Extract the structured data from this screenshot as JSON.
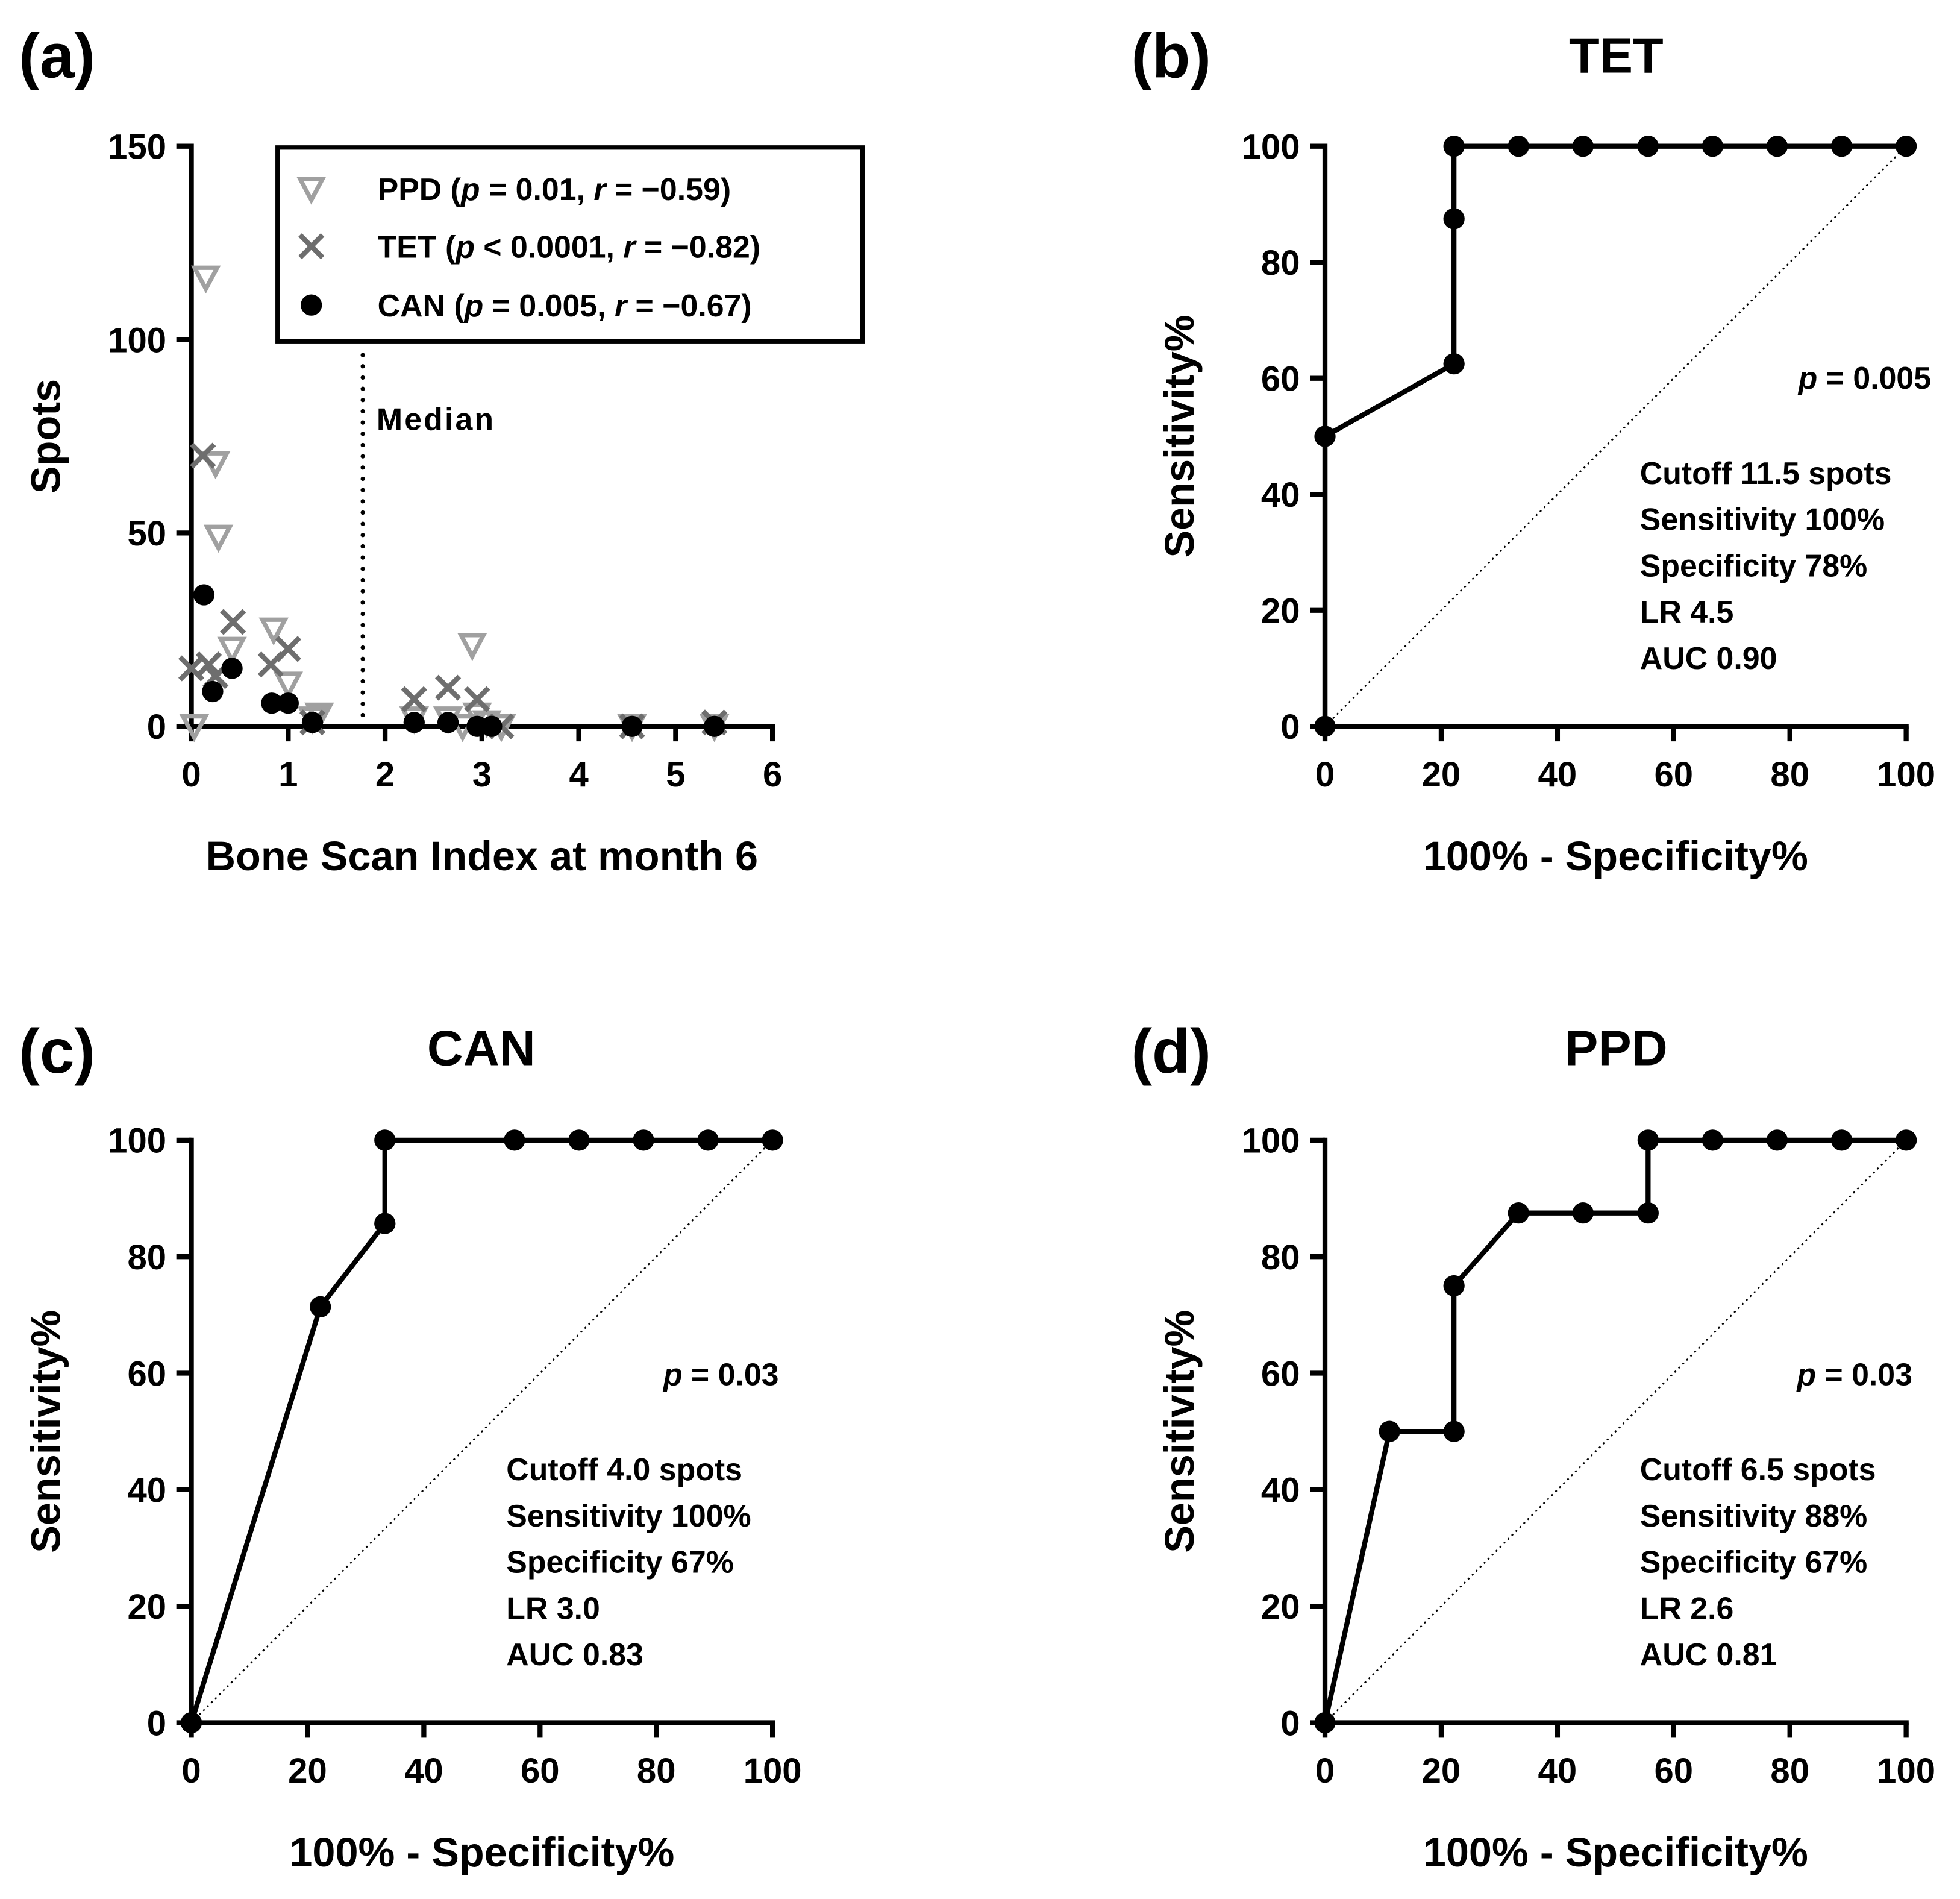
{
  "chart_data": [
    {
      "panel": "(a)",
      "type": "scatter",
      "title": "",
      "xlabel": "Bone Scan Index at month 6",
      "ylabel": "Spots",
      "xlim": [
        0,
        6
      ],
      "ylim": [
        0,
        150
      ],
      "xticks": [
        "0",
        "1",
        "2",
        "3",
        "4",
        "5",
        "6"
      ],
      "yticks": [
        "0",
        "50",
        "100",
        "150"
      ],
      "median_line": {
        "x": 1.77,
        "label": "Median"
      },
      "legend_position": "top-right",
      "series": [
        {
          "name": "PPD",
          "p_value": "= 0.01,",
          "r_value": "= −0.59",
          "marker": "triangle-down-open",
          "color": "#a0a0a0",
          "points": [
            [
              0.03,
              0
            ],
            [
              0.15,
              116
            ],
            [
              0.25,
              68
            ],
            [
              0.28,
              49
            ],
            [
              0.42,
              20
            ],
            [
              0.85,
              25
            ],
            [
              1.0,
              11
            ],
            [
              1.25,
              2
            ],
            [
              1.32,
              3
            ],
            [
              2.3,
              2
            ],
            [
              2.65,
              2
            ],
            [
              2.8,
              0
            ],
            [
              2.9,
              21
            ],
            [
              2.95,
              3
            ],
            [
              3.05,
              1
            ],
            [
              3.2,
              0
            ],
            [
              4.55,
              0
            ],
            [
              5.4,
              0
            ]
          ]
        },
        {
          "name": "TET",
          "p_value": "< 0.0001,",
          "r_value": "= −0.82",
          "marker": "x",
          "color": "#6e6e6e",
          "points": [
            [
              0.0,
              15
            ],
            [
              0.12,
              70
            ],
            [
              0.18,
              16
            ],
            [
              0.25,
              13
            ],
            [
              0.43,
              27
            ],
            [
              0.82,
              16
            ],
            [
              1.0,
              20
            ],
            [
              1.25,
              1
            ],
            [
              2.3,
              7
            ],
            [
              2.65,
              10
            ],
            [
              2.95,
              7
            ],
            [
              3.2,
              0
            ],
            [
              4.55,
              0
            ],
            [
              5.4,
              1
            ]
          ]
        },
        {
          "name": "CAN",
          "p_value": "= 0.005,",
          "r_value": "= −0.67",
          "marker": "circle",
          "color": "#000000",
          "points": [
            [
              0.13,
              34
            ],
            [
              0.22,
              9
            ],
            [
              0.42,
              15
            ],
            [
              0.83,
              6
            ],
            [
              1.0,
              6
            ],
            [
              1.25,
              1
            ],
            [
              2.3,
              1
            ],
            [
              2.65,
              1
            ],
            [
              2.95,
              0
            ],
            [
              3.1,
              0
            ],
            [
              4.55,
              0
            ],
            [
              5.4,
              0
            ]
          ]
        }
      ]
    },
    {
      "panel": "(b)",
      "type": "line",
      "title": "TET",
      "xlabel": "100% - Specificity%",
      "ylabel": "Sensitivity%",
      "xlim": [
        0,
        100
      ],
      "ylim": [
        0,
        100
      ],
      "xticks": [
        "0",
        "20",
        "40",
        "60",
        "80",
        "100"
      ],
      "yticks": [
        "0",
        "20",
        "40",
        "60",
        "80",
        "100"
      ],
      "x": [
        0,
        0,
        22.2,
        22.2,
        22.2,
        33.3,
        44.4,
        55.6,
        66.7,
        77.8,
        88.9,
        100
      ],
      "y": [
        0,
        50,
        62.5,
        87.5,
        100,
        100,
        100,
        100,
        100,
        100,
        100,
        100
      ],
      "p_value": "= 0.005",
      "stats": [
        "Cutoff 11.5 spots",
        "Sensitivity 100%",
        "Specificity 78%",
        "LR 4.5",
        "AUC 0.90"
      ]
    },
    {
      "panel": "(c)",
      "type": "line",
      "title": "CAN",
      "xlabel": "100% - Specificity%",
      "ylabel": "Sensitivity%",
      "xlim": [
        0,
        100
      ],
      "ylim": [
        0,
        100
      ],
      "xticks": [
        "0",
        "20",
        "40",
        "60",
        "80",
        "100"
      ],
      "yticks": [
        "0",
        "20",
        "40",
        "60",
        "80",
        "100"
      ],
      "x": [
        0,
        22.2,
        33.3,
        33.3,
        55.6,
        66.7,
        77.8,
        88.9,
        100
      ],
      "y": [
        0,
        71.4,
        85.7,
        100,
        100,
        100,
        100,
        100,
        100
      ],
      "p_value": "= 0.03",
      "stats": [
        "Cutoff 4.0 spots",
        "Sensitivity 100%",
        "Specificity 67%",
        "LR 3.0",
        "AUC 0.83"
      ]
    },
    {
      "panel": "(d)",
      "type": "line",
      "title": "PPD",
      "xlabel": "100% - Specificity%",
      "ylabel": "Sensitivity%",
      "xlim": [
        0,
        100
      ],
      "ylim": [
        0,
        100
      ],
      "xticks": [
        "0",
        "20",
        "40",
        "60",
        "80",
        "100"
      ],
      "yticks": [
        "0",
        "20",
        "40",
        "60",
        "80",
        "100"
      ],
      "x": [
        0,
        11.1,
        22.2,
        22.2,
        33.3,
        44.4,
        55.6,
        55.6,
        66.7,
        77.8,
        88.9,
        100
      ],
      "y": [
        0,
        50,
        50,
        75,
        87.5,
        87.5,
        87.5,
        100,
        100,
        100,
        100,
        100
      ],
      "p_value": "= 0.03",
      "stats": [
        "Cutoff 6.5 spots",
        "Sensitivity 88%",
        "Specificity 67%",
        "LR 2.6",
        "AUC 0.81"
      ]
    }
  ]
}
